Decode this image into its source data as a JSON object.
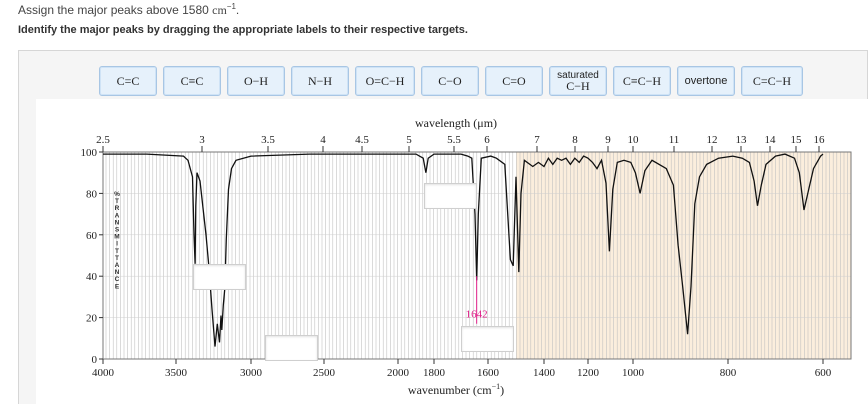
{
  "prompt": {
    "text": "Assign the major peaks above 1580 ",
    "unit": "cm",
    "exp": "−1",
    "end": "."
  },
  "instruction": "Identify the major peaks by dragging the appropriate labels to their respective targets.",
  "labels": [
    {
      "text": "C=C"
    },
    {
      "text": "C≡C"
    },
    {
      "text": "O−H"
    },
    {
      "text": "N−H"
    },
    {
      "text": "O=C−H"
    },
    {
      "text": "C−O"
    },
    {
      "text": "C=O"
    },
    {
      "text": "saturated C−H",
      "line1": "saturated",
      "line2": "C−H"
    },
    {
      "text": "C≡C−H"
    },
    {
      "text": "overtone"
    },
    {
      "text": "C=C−H"
    }
  ],
  "spectrum": {
    "wavelength_title": "wavelength (μm)",
    "wavelength_ticks": [
      "2.5",
      "3",
      "3.5",
      "4",
      "4.5",
      "5",
      "5.5",
      "6",
      "7",
      "8",
      "9",
      "10",
      "11",
      "12",
      "13",
      "14",
      "15",
      "16"
    ],
    "wavenumber_title": "wavenumber (cm",
    "wavenumber_title_exp": "−1",
    "wavenumber_title_end": ")",
    "wavenumber_ticks": [
      "4000",
      "3500",
      "3000",
      "2500",
      "2000",
      "1800",
      "1600",
      "1400",
      "1200",
      "1000",
      "800",
      "600"
    ],
    "y_ticks": [
      "100",
      "80",
      "60",
      "40",
      "20",
      "0"
    ],
    "y_label": "%TRANSMITTANCE",
    "peak_label": "1642",
    "colors": {
      "highfreq_bg": "#ffffff",
      "lowfreq_bg": "#fbeedd",
      "grid": "#bdbdbd",
      "trace": "#111111",
      "peak": "#e0208a"
    }
  }
}
